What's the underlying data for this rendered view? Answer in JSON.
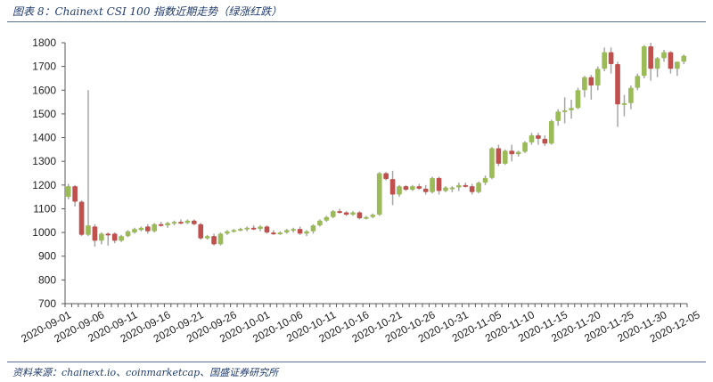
{
  "header": {
    "title": "图表 8：Chainext CSI 100 指数近期走势（绿涨红跌）"
  },
  "footer": {
    "source": "资料来源：chainext.io、coinmarketcap、国盛证券研究所"
  },
  "colors": {
    "up": "#9bbb59",
    "down": "#c0504d",
    "wick": "#a6a6a6",
    "axis": "#595959"
  },
  "chart_data": {
    "type": "candlestick",
    "title": "Chainext CSI 100 指数近期走势（绿涨红跌）",
    "xlabel": "",
    "ylabel": "",
    "ylim": [
      700,
      1800
    ],
    "yticks": [
      700,
      800,
      900,
      1000,
      1100,
      1200,
      1300,
      1400,
      1500,
      1600,
      1700,
      1800
    ],
    "xtick_labels": [
      "2020-09-01",
      "2020-09-06",
      "2020-09-11",
      "2020-09-16",
      "2020-09-21",
      "2020-09-26",
      "2020-10-01",
      "2020-10-06",
      "2020-10-11",
      "2020-10-16",
      "2020-10-21",
      "2020-10-26",
      "2020-10-31",
      "2020-11-05",
      "2020-11-10",
      "2020-11-15",
      "2020-11-20",
      "2020-11-25",
      "2020-11-30",
      "2020-12-05"
    ],
    "grid": false,
    "legend": "none",
    "ohlc": [
      [
        1150,
        1205,
        1140,
        1195
      ],
      [
        1195,
        1200,
        1110,
        1130
      ],
      [
        1130,
        1135,
        985,
        990
      ],
      [
        990,
        1600,
        985,
        1030
      ],
      [
        1025,
        1035,
        940,
        965
      ],
      [
        965,
        1000,
        950,
        995
      ],
      [
        995,
        1000,
        945,
        990
      ],
      [
        995,
        1000,
        955,
        965
      ],
      [
        965,
        990,
        960,
        985
      ],
      [
        985,
        1010,
        980,
        1005
      ],
      [
        1000,
        1020,
        995,
        1015
      ],
      [
        1010,
        1025,
        1005,
        1020
      ],
      [
        1025,
        1035,
        995,
        1005
      ],
      [
        1005,
        1040,
        1000,
        1035
      ],
      [
        1035,
        1045,
        1025,
        1030
      ],
      [
        1030,
        1045,
        1020,
        1040
      ],
      [
        1040,
        1050,
        1030,
        1045
      ],
      [
        1045,
        1055,
        1035,
        1040
      ],
      [
        1040,
        1055,
        1035,
        1050
      ],
      [
        1050,
        1055,
        1030,
        1035
      ],
      [
        1035,
        1040,
        970,
        975
      ],
      [
        975,
        990,
        970,
        985
      ],
      [
        985,
        995,
        945,
        950
      ],
      [
        950,
        1000,
        945,
        995
      ],
      [
        995,
        1010,
        990,
        1005
      ],
      [
        1005,
        1015,
        1000,
        1010
      ],
      [
        1010,
        1020,
        1005,
        1015
      ],
      [
        1015,
        1025,
        1005,
        1020
      ],
      [
        1020,
        1030,
        1010,
        1015
      ],
      [
        1015,
        1030,
        1005,
        1025
      ],
      [
        1025,
        1030,
        995,
        1000
      ],
      [
        1000,
        1010,
        990,
        995
      ],
      [
        995,
        1005,
        990,
        1000
      ],
      [
        1000,
        1015,
        995,
        1010
      ],
      [
        1010,
        1020,
        1000,
        1015
      ],
      [
        1015,
        1025,
        990,
        995
      ],
      [
        995,
        1010,
        985,
        1005
      ],
      [
        1005,
        1035,
        995,
        1030
      ],
      [
        1030,
        1055,
        1025,
        1050
      ],
      [
        1050,
        1070,
        1045,
        1065
      ],
      [
        1065,
        1095,
        1060,
        1090
      ],
      [
        1090,
        1100,
        1080,
        1085
      ],
      [
        1085,
        1090,
        1070,
        1075
      ],
      [
        1075,
        1090,
        1070,
        1085
      ],
      [
        1085,
        1090,
        1055,
        1060
      ],
      [
        1060,
        1070,
        1055,
        1065
      ],
      [
        1065,
        1080,
        1060,
        1075
      ],
      [
        1075,
        1255,
        1070,
        1250
      ],
      [
        1250,
        1255,
        1220,
        1225
      ],
      [
        1225,
        1260,
        1115,
        1160
      ],
      [
        1160,
        1200,
        1150,
        1195
      ],
      [
        1195,
        1200,
        1175,
        1180
      ],
      [
        1180,
        1200,
        1175,
        1195
      ],
      [
        1195,
        1205,
        1180,
        1185
      ],
      [
        1185,
        1200,
        1160,
        1170
      ],
      [
        1170,
        1235,
        1165,
        1230
      ],
      [
        1230,
        1235,
        1160,
        1175
      ],
      [
        1175,
        1195,
        1170,
        1190
      ],
      [
        1190,
        1195,
        1170,
        1190
      ],
      [
        1190,
        1210,
        1175,
        1200
      ],
      [
        1200,
        1210,
        1190,
        1195
      ],
      [
        1195,
        1205,
        1160,
        1170
      ],
      [
        1170,
        1215,
        1165,
        1210
      ],
      [
        1210,
        1240,
        1200,
        1230
      ],
      [
        1230,
        1360,
        1225,
        1355
      ],
      [
        1355,
        1370,
        1280,
        1290
      ],
      [
        1290,
        1350,
        1285,
        1345
      ],
      [
        1345,
        1370,
        1300,
        1330
      ],
      [
        1330,
        1345,
        1320,
        1340
      ],
      [
        1340,
        1385,
        1335,
        1380
      ],
      [
        1380,
        1420,
        1370,
        1410
      ],
      [
        1410,
        1420,
        1370,
        1395
      ],
      [
        1395,
        1410,
        1365,
        1375
      ],
      [
        1375,
        1475,
        1370,
        1470
      ],
      [
        1470,
        1520,
        1450,
        1510
      ],
      [
        1510,
        1570,
        1460,
        1515
      ],
      [
        1515,
        1560,
        1480,
        1525
      ],
      [
        1525,
        1610,
        1520,
        1600
      ],
      [
        1600,
        1660,
        1570,
        1655
      ],
      [
        1655,
        1665,
        1560,
        1620
      ],
      [
        1620,
        1700,
        1600,
        1690
      ],
      [
        1690,
        1780,
        1680,
        1760
      ],
      [
        1760,
        1780,
        1670,
        1710
      ],
      [
        1710,
        1720,
        1445,
        1540
      ],
      [
        1540,
        1580,
        1490,
        1545
      ],
      [
        1545,
        1620,
        1520,
        1610
      ],
      [
        1610,
        1670,
        1600,
        1660
      ],
      [
        1660,
        1790,
        1650,
        1785
      ],
      [
        1785,
        1800,
        1640,
        1690
      ],
      [
        1690,
        1740,
        1655,
        1735
      ],
      [
        1735,
        1770,
        1720,
        1760
      ],
      [
        1760,
        1765,
        1670,
        1690
      ],
      [
        1690,
        1720,
        1660,
        1720
      ],
      [
        1720,
        1750,
        1710,
        1745
      ]
    ]
  }
}
